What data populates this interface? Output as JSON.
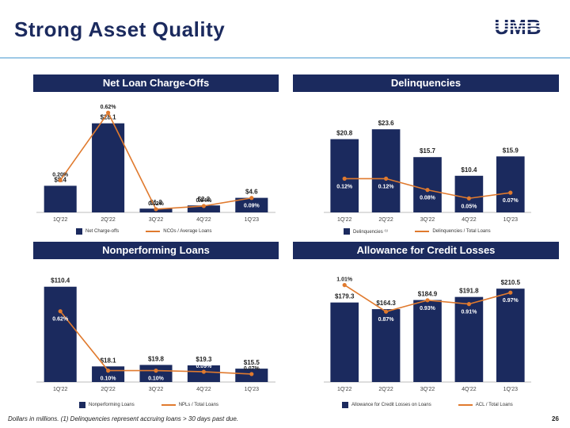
{
  "page": {
    "title": "Strong Asset Quality",
    "logo_text": "UMB",
    "footnote": "Dollars in millions. (1) Delinquencies represent accruing loans > 30 days past due.",
    "page_number": "26"
  },
  "colors": {
    "navy": "#1b2a5e",
    "orange": "#e07a2e",
    "rule": "#9ec9e6"
  },
  "chart_data": [
    {
      "type": "bar",
      "title": "Net Loan Charge-Offs",
      "categories": [
        "1Q'22",
        "2Q'22",
        "3Q'22",
        "4Q'22",
        "1Q'23"
      ],
      "series": [
        {
          "name": "Net Charge-offs",
          "kind": "bar",
          "values": [
            8.4,
            28.1,
            1.2,
            2.2,
            4.6
          ],
          "labels": [
            "$8.4",
            "$28.1",
            "$1.2",
            "$2.2",
            "$4.6"
          ]
        },
        {
          "name": "NCOs / Average Loans",
          "kind": "line",
          "values": [
            0.2,
            0.62,
            0.02,
            0.04,
            0.09
          ],
          "labels": [
            "0.20%",
            "0.62%",
            "0.02%",
            "0.04%",
            "0.09%"
          ]
        }
      ],
      "ylim": [
        0,
        30
      ],
      "line_ylim": [
        0,
        0.7
      ]
    },
    {
      "type": "bar",
      "title": "Delinquencies",
      "categories": [
        "1Q'22",
        "2Q'22",
        "3Q'22",
        "4Q'22",
        "1Q'23"
      ],
      "series": [
        {
          "name": "Delinquencies ⁽¹⁾",
          "kind": "bar",
          "values": [
            20.8,
            23.6,
            15.7,
            10.4,
            15.9
          ],
          "labels": [
            "$20.8",
            "$23.6",
            "$15.7",
            "$10.4",
            "$15.9"
          ]
        },
        {
          "name": "Delinquencies / Total Loans",
          "kind": "line",
          "values": [
            0.12,
            0.12,
            0.08,
            0.05,
            0.07
          ],
          "labels": [
            "0.12%",
            "0.12%",
            "0.08%",
            "0.05%",
            "0.07%"
          ]
        }
      ],
      "ylim": [
        0,
        27
      ],
      "line_ylim": [
        0,
        0.4
      ]
    },
    {
      "type": "bar",
      "title": "Nonperforming Loans",
      "categories": [
        "1Q'22",
        "2Q'22",
        "3Q'22",
        "4Q'22",
        "1Q'23"
      ],
      "series": [
        {
          "name": "Nonperforming Loans",
          "kind": "bar",
          "values": [
            110.4,
            18.1,
            19.8,
            19.3,
            15.5
          ],
          "labels": [
            "$110.4",
            "$18.1",
            "$19.8",
            "$19.3",
            "$15.5"
          ]
        },
        {
          "name": "NPLs / Total Loans",
          "kind": "line",
          "values": [
            0.62,
            0.1,
            0.1,
            0.09,
            0.07
          ],
          "labels": [
            "0.62%",
            "0.10%",
            "0.10%",
            "0.09%",
            "0.07%"
          ]
        }
      ],
      "ylim": [
        0,
        112
      ],
      "line_ylim": [
        0,
        1.0
      ]
    },
    {
      "type": "bar",
      "title": "Allowance for Credit Losses",
      "categories": [
        "1Q'22",
        "2Q'22",
        "3Q'22",
        "4Q'22",
        "1Q'23"
      ],
      "series": [
        {
          "name": "Allowance for Credit Losses on Loans",
          "kind": "bar",
          "values": [
            179.3,
            164.3,
            184.9,
            191.8,
            210.5
          ],
          "labels": [
            "$179.3",
            "$164.3",
            "$184.9",
            "$191.8",
            "$210.5"
          ]
        },
        {
          "name": "ACL / Total Loans",
          "kind": "line",
          "values": [
            1.01,
            0.87,
            0.93,
            0.91,
            0.97
          ],
          "labels": [
            "1.01%",
            "0.87%",
            "0.93%",
            "0.91%",
            "0.97%"
          ]
        }
      ],
      "ylim": [
        0,
        218
      ],
      "line_ylim": [
        0.5,
        1.1
      ]
    }
  ]
}
